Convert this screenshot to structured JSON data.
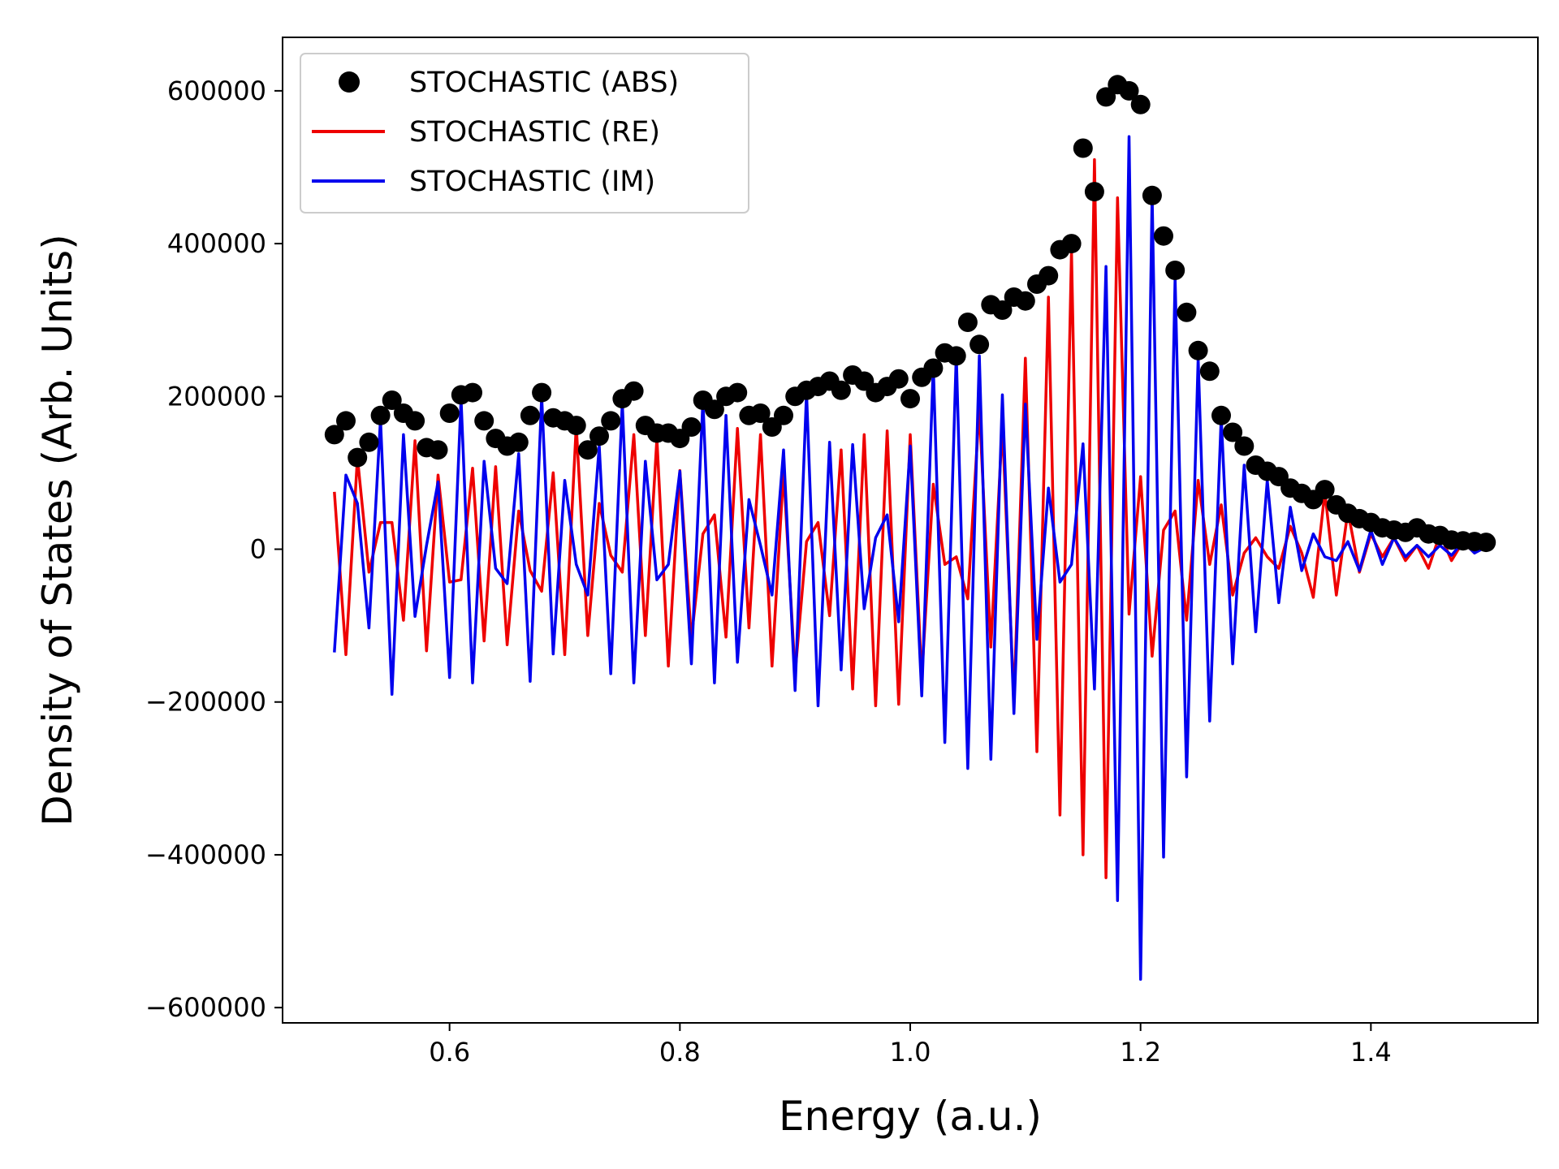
{
  "chart_data": {
    "type": "line",
    "title": "",
    "xlabel": "Energy (a.u.)",
    "ylabel": "Density of States (Arb. Units)",
    "xlim": [
      0.455,
      1.545
    ],
    "ylim": [
      -620000,
      670000
    ],
    "xticks": [
      0.6,
      0.8,
      1.0,
      1.2,
      1.4
    ],
    "xtick_labels": [
      "0.6",
      "0.8",
      "1.0",
      "1.2",
      "1.4"
    ],
    "yticks": [
      -600000,
      -400000,
      -200000,
      0,
      200000,
      400000,
      600000
    ],
    "ytick_labels": [
      "−600000",
      "−400000",
      "−200000",
      "0",
      "200000",
      "400000",
      "600000"
    ],
    "grid": false,
    "legend_position": "top-left",
    "x": [
      0.5,
      0.51,
      0.52,
      0.53,
      0.54,
      0.55,
      0.56,
      0.57,
      0.58,
      0.59,
      0.6,
      0.61,
      0.62,
      0.63,
      0.64,
      0.65,
      0.66,
      0.67,
      0.68,
      0.69,
      0.7,
      0.71,
      0.72,
      0.73,
      0.74,
      0.75,
      0.76,
      0.77,
      0.78,
      0.79,
      0.8,
      0.81,
      0.82,
      0.83,
      0.84,
      0.85,
      0.86,
      0.87,
      0.88,
      0.89,
      0.9,
      0.91,
      0.92,
      0.93,
      0.94,
      0.95,
      0.96,
      0.97,
      0.98,
      0.99,
      1.0,
      1.01,
      1.02,
      1.03,
      1.04,
      1.05,
      1.06,
      1.07,
      1.08,
      1.09,
      1.1,
      1.11,
      1.12,
      1.13,
      1.14,
      1.15,
      1.16,
      1.17,
      1.18,
      1.19,
      1.2,
      1.21,
      1.22,
      1.23,
      1.24,
      1.25,
      1.26,
      1.27,
      1.28,
      1.29,
      1.3,
      1.31,
      1.32,
      1.33,
      1.34,
      1.35,
      1.36,
      1.37,
      1.38,
      1.39,
      1.4,
      1.41,
      1.42,
      1.43,
      1.44,
      1.45,
      1.46,
      1.47,
      1.48,
      1.49,
      1.5
    ],
    "series": [
      {
        "name": "STOCHASTIC (ABS)",
        "style": "markers",
        "color": "#000000",
        "values": [
          150000,
          168000,
          120000,
          140000,
          175000,
          195000,
          178000,
          168000,
          133000,
          130000,
          178000,
          202000,
          205000,
          168000,
          145000,
          135000,
          140000,
          175000,
          205000,
          172000,
          168000,
          162000,
          130000,
          148000,
          168000,
          197000,
          207000,
          162000,
          152000,
          152000,
          145000,
          160000,
          195000,
          183000,
          200000,
          205000,
          175000,
          178000,
          160000,
          175000,
          200000,
          208000,
          213000,
          220000,
          208000,
          228000,
          220000,
          205000,
          213000,
          223000,
          197000,
          225000,
          237000,
          257000,
          253000,
          297000,
          268000,
          320000,
          313000,
          330000,
          325000,
          347000,
          358000,
          392000,
          400000,
          525000,
          468000,
          592000,
          608000,
          600000,
          582000,
          463000,
          410000,
          365000,
          310000,
          260000,
          233000,
          175000,
          153000,
          135000,
          110000,
          102000,
          95000,
          80000,
          73000,
          65000,
          78000,
          58000,
          47000,
          40000,
          35000,
          28000,
          25000,
          22000,
          28000,
          20000,
          18000,
          12000,
          11000,
          10000,
          9000
        ]
      },
      {
        "name": "STOCHASTIC (RE)",
        "style": "line",
        "color": "#ee0000",
        "values": [
          75000,
          -138000,
          120000,
          -30000,
          35000,
          35000,
          -93000,
          142000,
          -133000,
          97000,
          -43000,
          -40000,
          106000,
          -120000,
          108000,
          -125000,
          50000,
          -28000,
          -55000,
          100000,
          -138000,
          162000,
          -113000,
          60000,
          -8000,
          -30000,
          150000,
          -113000,
          145000,
          -153000,
          103000,
          -117000,
          20000,
          45000,
          -115000,
          158000,
          -103000,
          150000,
          -153000,
          102000,
          -163000,
          10000,
          35000,
          -87000,
          130000,
          -183000,
          150000,
          -205000,
          155000,
          -203000,
          150000,
          -168000,
          85000,
          -20000,
          -10000,
          -65000,
          185000,
          -128000,
          163000,
          -200000,
          250000,
          -265000,
          330000,
          -348000,
          390000,
          -400000,
          510000,
          -430000,
          460000,
          -85000,
          95000,
          -140000,
          25000,
          50000,
          -93000,
          90000,
          -20000,
          58000,
          -60000,
          -5000,
          15000,
          -10000,
          -25000,
          30000,
          -5000,
          -63000,
          75000,
          -60000,
          50000,
          -30000,
          20000,
          -10000,
          15000,
          -15000,
          5000,
          -25000,
          20000,
          -15000,
          10000,
          -5000,
          12000
        ]
      },
      {
        "name": "STOCHASTIC (IM)",
        "style": "line",
        "color": "#0000ee",
        "values": [
          -135000,
          97000,
          60000,
          -103000,
          170000,
          -190000,
          150000,
          -88000,
          5000,
          88000,
          -168000,
          197000,
          -175000,
          115000,
          -25000,
          -45000,
          125000,
          -173000,
          200000,
          -137000,
          90000,
          -20000,
          -60000,
          135000,
          -163000,
          192000,
          -175000,
          115000,
          -40000,
          -20000,
          102000,
          -150000,
          195000,
          -175000,
          175000,
          -148000,
          65000,
          5000,
          -60000,
          130000,
          -185000,
          205000,
          -205000,
          140000,
          -158000,
          137000,
          -78000,
          15000,
          45000,
          -95000,
          135000,
          -192000,
          240000,
          -253000,
          255000,
          -287000,
          253000,
          -275000,
          202000,
          -215000,
          190000,
          -118000,
          80000,
          -43000,
          -20000,
          138000,
          -183000,
          370000,
          -460000,
          540000,
          -563000,
          465000,
          -403000,
          355000,
          -298000,
          250000,
          -225000,
          173000,
          -150000,
          110000,
          -108000,
          90000,
          -70000,
          55000,
          -28000,
          20000,
          -10000,
          -15000,
          10000,
          -28000,
          25000,
          -20000,
          15000,
          -10000,
          5000,
          -10000,
          5000,
          -8000,
          10000,
          -5000,
          3000
        ]
      }
    ]
  }
}
